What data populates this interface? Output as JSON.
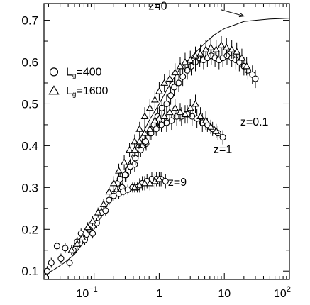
{
  "chart_data": {
    "type": "scatter",
    "x_scale": "log",
    "y_scale": "linear",
    "xlim": [
      0.017,
      100
    ],
    "ylim": [
      0.08,
      0.74
    ],
    "grid": false,
    "legend_position": "left",
    "y_ticks": [
      {
        "value": 0.1,
        "label": "0.1"
      },
      {
        "value": 0.2,
        "label": "0.2"
      },
      {
        "value": 0.3,
        "label": "0.3"
      },
      {
        "value": 0.4,
        "label": "0.4"
      },
      {
        "value": 0.5,
        "label": "0.5"
      },
      {
        "value": 0.6,
        "label": "0.6"
      },
      {
        "value": 0.7,
        "label": "0.7"
      }
    ],
    "x_ticks": [
      {
        "value": 0.1,
        "base": "10",
        "exp": "−1"
      },
      {
        "value": 1,
        "base": "1",
        "exp": ""
      },
      {
        "value": 10,
        "base": "10",
        "exp": ""
      },
      {
        "value": 100,
        "base": "10",
        "exp": "2"
      }
    ],
    "legend": [
      {
        "marker": "circle",
        "text": "L",
        "sub": "g",
        "rest": "=400"
      },
      {
        "marker": "triangle",
        "text": "L",
        "sub": "g",
        "rest": "=1600"
      }
    ],
    "annotations": [
      {
        "text": "z=0",
        "x": 0.95,
        "y": 0.726
      },
      {
        "text": "z=0.1",
        "x": 29,
        "y": 0.448
      },
      {
        "text": "z=1",
        "x": 9.5,
        "y": 0.383
      },
      {
        "text": "z=9",
        "x": 1.9,
        "y": 0.304
      }
    ],
    "arrow": {
      "from": [
        9,
        0.725
      ],
      "to": [
        20,
        0.71
      ]
    },
    "curve": {
      "name": "z=0",
      "x": [
        0.017,
        0.025,
        0.035,
        0.05,
        0.07,
        0.1,
        0.14,
        0.2,
        0.3,
        0.45,
        0.7,
        1,
        1.5,
        2,
        3,
        4,
        5,
        7,
        10,
        15,
        20,
        30,
        50,
        70,
        100
      ],
      "y": [
        0.09,
        0.105,
        0.12,
        0.14,
        0.17,
        0.2,
        0.24,
        0.29,
        0.34,
        0.4,
        0.46,
        0.5,
        0.55,
        0.58,
        0.61,
        0.63,
        0.645,
        0.665,
        0.68,
        0.69,
        0.697,
        0.7,
        0.703,
        0.704,
        0.705
      ]
    },
    "series": [
      {
        "name": "L_g=400, z=0.1",
        "marker": "circle",
        "x": [
          0.019,
          0.022,
          0.027,
          0.031,
          0.036,
          0.042,
          0.048,
          0.055,
          0.063,
          0.072,
          0.083,
          0.095,
          0.11,
          0.13,
          0.15,
          0.17,
          0.2,
          0.23,
          0.27,
          0.31,
          0.36,
          0.42,
          0.48,
          0.55,
          0.63,
          0.72,
          0.83,
          0.95,
          1.1,
          1.3,
          1.5,
          1.7,
          2.0,
          2.3,
          2.7,
          3.1,
          3.6,
          4.2,
          4.8,
          5.5,
          6.3,
          7.2,
          8.3,
          9.5,
          11,
          13,
          15,
          17,
          20,
          23,
          27,
          30
        ],
        "y": [
          0.1,
          0.12,
          0.16,
          0.13,
          0.155,
          0.12,
          0.15,
          0.17,
          0.19,
          0.175,
          0.2,
          0.19,
          0.215,
          0.24,
          0.245,
          0.27,
          0.285,
          0.31,
          0.3,
          0.33,
          0.35,
          0.355,
          0.39,
          0.4,
          0.405,
          0.43,
          0.45,
          0.47,
          0.49,
          0.5,
          0.52,
          0.54,
          0.55,
          0.565,
          0.58,
          0.59,
          0.6,
          0.61,
          0.605,
          0.61,
          0.615,
          0.61,
          0.605,
          0.61,
          0.615,
          0.61,
          0.605,
          0.6,
          0.59,
          0.58,
          0.57,
          0.56
        ]
      },
      {
        "name": "L_g=1600, z=0.1",
        "marker": "triangle",
        "x": [
          0.045,
          0.055,
          0.066,
          0.08,
          0.095,
          0.115,
          0.14,
          0.17,
          0.2,
          0.24,
          0.29,
          0.35,
          0.42,
          0.5,
          0.6,
          0.72,
          0.86,
          1.0,
          1.2,
          1.45,
          1.75,
          2.1,
          2.5,
          3.0,
          3.6,
          4.3,
          5.2,
          6.2,
          7.5,
          9,
          10.8,
          13,
          15.5,
          18.6,
          22
        ],
        "y": [
          0.15,
          0.165,
          0.18,
          0.205,
          0.22,
          0.24,
          0.26,
          0.29,
          0.31,
          0.34,
          0.36,
          0.39,
          0.41,
          0.44,
          0.47,
          0.49,
          0.51,
          0.53,
          0.55,
          0.56,
          0.575,
          0.59,
          0.6,
          0.605,
          0.615,
          0.62,
          0.63,
          0.635,
          0.63,
          0.64,
          0.635,
          0.63,
          0.625,
          0.61,
          0.59
        ]
      },
      {
        "name": "L_g=400, z=1",
        "marker": "circle",
        "x": [
          0.25,
          0.3,
          0.36,
          0.43,
          0.52,
          0.62,
          0.75,
          0.9,
          1.08,
          1.3,
          1.55,
          1.86,
          2.2,
          2.7,
          3.2,
          3.8,
          4.6,
          5.5,
          6.6,
          8,
          9.5
        ],
        "y": [
          0.32,
          0.33,
          0.35,
          0.37,
          0.39,
          0.41,
          0.43,
          0.44,
          0.45,
          0.455,
          0.46,
          0.47,
          0.47,
          0.475,
          0.47,
          0.465,
          0.455,
          0.45,
          0.44,
          0.43,
          0.42
        ]
      },
      {
        "name": "L_g=1600, z=1",
        "marker": "triangle",
        "x": [
          0.42,
          0.5,
          0.6,
          0.72,
          0.86,
          1.0,
          1.2,
          1.45,
          1.75,
          2.1,
          2.5,
          3.0,
          3.6,
          4.3,
          5.2,
          6.2,
          7.5
        ],
        "y": [
          0.39,
          0.41,
          0.43,
          0.44,
          0.46,
          0.465,
          0.47,
          0.48,
          0.49,
          0.48,
          0.475,
          0.49,
          0.5,
          0.47,
          0.46,
          0.445,
          0.435
        ]
      },
      {
        "name": "L_g=400, z=9",
        "marker": "circle",
        "x": [
          0.2,
          0.24,
          0.28,
          0.33,
          0.39,
          0.46,
          0.55,
          0.65,
          0.77,
          0.91,
          1.07,
          1.25
        ],
        "y": [
          0.28,
          0.285,
          0.29,
          0.295,
          0.3,
          0.3,
          0.31,
          0.315,
          0.32,
          0.32,
          0.32,
          0.315
        ]
      },
      {
        "name": "L_g=1600, z=9",
        "marker": "triangle",
        "x": [
          0.42,
          0.5,
          0.6,
          0.72,
          0.86,
          1.0
        ],
        "y": [
          0.3,
          0.305,
          0.31,
          0.31,
          0.315,
          0.32
        ]
      }
    ]
  }
}
